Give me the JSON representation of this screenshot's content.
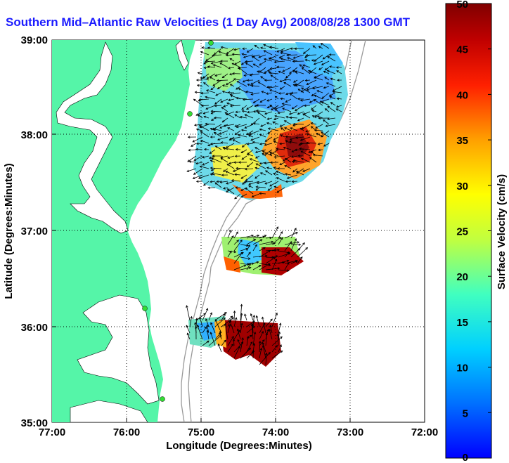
{
  "title": "Southern Mid–Atlantic Raw Velocities (1 Day Avg) 2008/08/28 1300 GMT",
  "axes": {
    "xlabel": "Longitude (Degrees:Minutes)",
    "ylabel": "Latitude (Degrees:Minutes)",
    "x_ticks": [
      "77:00",
      "76:00",
      "75:00",
      "74:00",
      "73:00",
      "72:00"
    ],
    "y_ticks": [
      "39:00",
      "38:00",
      "37:00",
      "36:00",
      "35:00"
    ]
  },
  "colorbar": {
    "label": "Surface Velocity (cm/s)",
    "min": 0,
    "max": 50,
    "ticks": [
      "50",
      "45",
      "40",
      "35",
      "30",
      "25",
      "20",
      "15",
      "10",
      "5",
      "0"
    ]
  },
  "colors": {
    "land": "#55f5a8",
    "water": "#ffffff",
    "title": "#1a1aff",
    "station": "#33dd33"
  }
}
